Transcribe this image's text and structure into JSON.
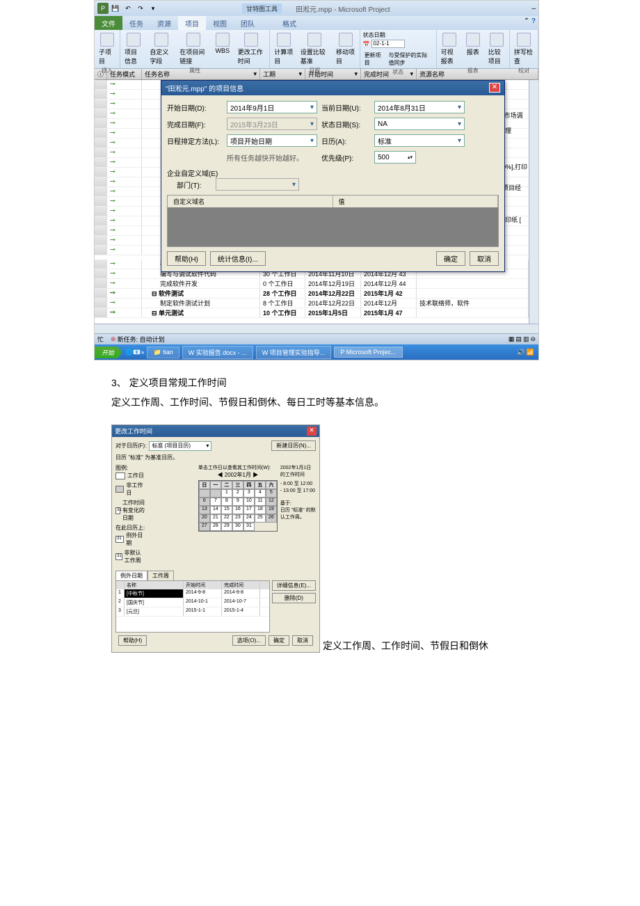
{
  "app": {
    "gantt_tool_label": "甘特图工具",
    "doc_title": "田淞元.mpp - Microsoft Project"
  },
  "tabs": {
    "file": "文件",
    "task": "任务",
    "resource": "资源",
    "project": "项目",
    "view": "视图",
    "team": "团队",
    "format": "格式"
  },
  "ribbon": {
    "g_insert": "插入",
    "subproject": "子项目",
    "g_props": "属性",
    "proj_info": "项目信息",
    "custom_fields": "自定义字段",
    "between_proj": "在项目间链接",
    "wbs": "WBS",
    "change_time": "更改工作时间",
    "g_schedule": "日程",
    "calc_proj": "计算项目",
    "set_baseline": "设置比较基准",
    "move_proj": "移动项目",
    "g_status": "状态",
    "status_date_lbl": "状态日期:",
    "status_date_val": "02-1-1",
    "update_proj": "更新项目",
    "sync_protected": "与受保护的实际值同步",
    "g_reports": "报表",
    "visual_rep": "可视报表",
    "reports": "报表",
    "compare_proj": "比较项目",
    "g_proof": "校对",
    "spell": "拼写检查"
  },
  "grid_hdr": {
    "info": "",
    "mode": "任务模式",
    "name": "任务名称",
    "dur": "工期",
    "start": "开始时间",
    "end": "完成时间",
    "res": "资源名称"
  },
  "dialog": {
    "title": "\"田淞元.mpp\" 的项目信息",
    "start_lbl": "开始日期(D):",
    "start_val": "2014年9月1日",
    "cur_lbl": "当前日期(U):",
    "cur_val": "2014年8月31日",
    "finish_lbl": "完成日期(F):",
    "finish_val": "2015年3月23日",
    "status_lbl": "状态日期(S):",
    "status_val": "NA",
    "sched_lbl": "日程排定方法(L):",
    "sched_val": "项目开始日期",
    "cal_lbl": "日历(A):",
    "cal_val": "标准",
    "hint": "所有任务越快开始越好。",
    "prio_lbl": "优先级(P):",
    "prio_val": "500",
    "ent_lbl": "企业自定义域(E)",
    "dept_lbl": "部门(T):",
    "col_name": "自定义域名",
    "col_val": "值",
    "help": "帮助(H)",
    "stats": "统计信息(I)...",
    "ok": "确定",
    "cancel": "取消"
  },
  "side_notes": [
    "], 市场调",
    "经理",
    "00%],打印",
    "],项目经",
    "打印纸 ["
  ],
  "tasks": [
    {
      "name": "确定软件模块化设计参数",
      "dur": "2 个工作日",
      "start": "2014年11月6日",
      "end": "2014年11月",
      "res": "餐饮费 [￥5,000.00],打"
    },
    {
      "name": "编写与调试软件代码",
      "dur": "30 个工作日",
      "start": "2014年11月10日",
      "end": "2014年12月 43"
    },
    {
      "name": "完成软件开发",
      "dur": "0 个工作日",
      "start": "2014年12月19日",
      "end": "2014年12月 44"
    },
    {
      "name": "软件测试",
      "dur": "28 个工作日",
      "start": "2014年12月22日",
      "end": "2015年1月 42",
      "bold": true
    },
    {
      "name": "制定软件测试计划",
      "dur": "8 个工作日",
      "start": "2014年12月22日",
      "end": "2014年12月",
      "res": "技术联络师，软件"
    },
    {
      "name": "单元测试",
      "dur": "10 个工作日",
      "start": "2015年1月5日",
      "end": "2015年1月 47",
      "bold": true
    }
  ],
  "statusbar": {
    "busy": "忙",
    "new_task": "新任务: 自动计划"
  },
  "taskbar": {
    "start": "开始",
    "folder": "tian",
    "items": [
      "实验报告.docx - ...",
      "项目管理实验指导...",
      "Microsoft Projec..."
    ]
  },
  "section3": {
    "heading": "3、 定义项目常规工作时间",
    "desc": "定义工作周、工作时间、节假日和倒休、每日工时等基本信息。",
    "inline_caption": "定义工作周、工作时间、节假日和倒休"
  },
  "caldlg": {
    "title": "更改工作时间",
    "for_lbl": "对于日历(F):",
    "for_val": "标准 (项目日历)",
    "new_cal": "新建日历(N)...",
    "base_note": "日历 \"标准\" 为基准日历。",
    "legend_lbl": "图例:",
    "legend": {
      "work": "工作日",
      "nonwork": "非工作日",
      "edited": "工作时间有变化的日期",
      "on_this": "在此日历上:",
      "exc": "例外日期",
      "nondef": "非默认工作周"
    },
    "click_hint": "单击工作日以查看其工作时间(W):",
    "month": "2002年1月",
    "dow": [
      "日",
      "一",
      "二",
      "三",
      "四",
      "五",
      "六"
    ],
    "time_title": "2002年1月1日 的工作时间",
    "times": [
      "- 8:00 至 12:00",
      "- 13:00 至 17:00"
    ],
    "based": "基于:",
    "based_val": "日历 \"标准\" 的默认工作周。",
    "tab_exc": "例外日期",
    "tab_week": "工作周",
    "tbl_name": "名称",
    "tbl_start": "开始时间",
    "tbl_end": "完成时间",
    "rows": [
      {
        "i": "1",
        "n": "[中秋节]",
        "s": "2014-9-8",
        "e": "2014-9-8"
      },
      {
        "i": "2",
        "n": "[国庆节]",
        "s": "2014-10-1",
        "e": "2014-10-7"
      },
      {
        "i": "3",
        "n": "[元旦]",
        "s": "2015-1-1",
        "e": "2015-1-4"
      }
    ],
    "detail": "详细信息(E)...",
    "delete": "删除(D)",
    "help": "帮助(H)",
    "options": "选项(O)...",
    "ok": "确定",
    "cancel": "取消"
  }
}
